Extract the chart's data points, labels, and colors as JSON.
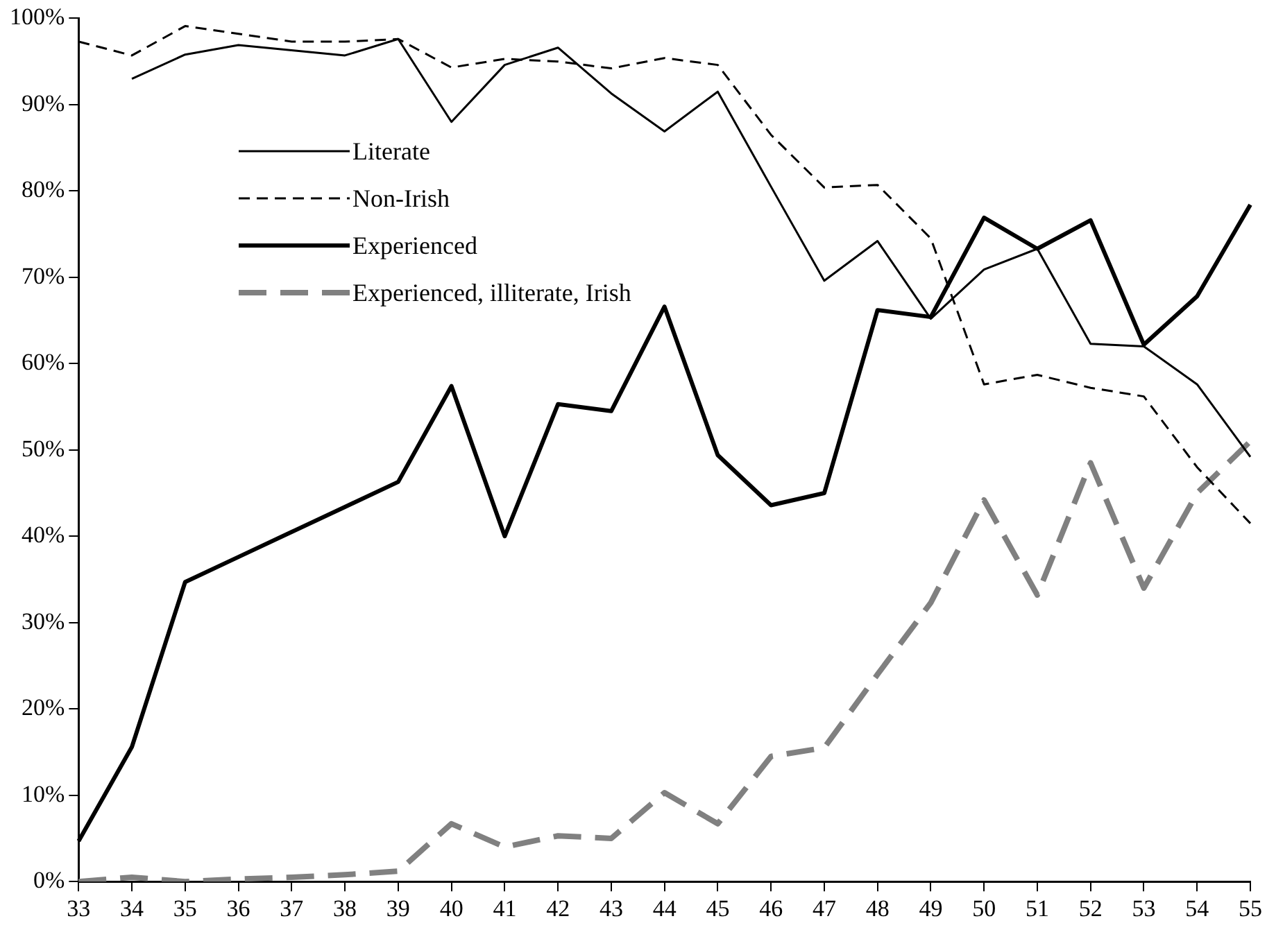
{
  "chart_data": {
    "type": "line",
    "categories": [
      "33",
      "34",
      "35",
      "36",
      "37",
      "38",
      "39",
      "40",
      "41",
      "42",
      "43",
      "44",
      "45",
      "46",
      "47",
      "48",
      "49",
      "50",
      "51",
      "52",
      "53",
      "54",
      "55"
    ],
    "series": [
      {
        "name": "Literate",
        "color": "#000000",
        "line_style": "solid",
        "values": [
          null,
          93,
          95.8,
          96.9,
          96.3,
          95.7,
          97.6,
          88,
          94.6,
          96.6,
          91.3,
          86.9,
          91.5,
          80.5,
          69.6,
          74.2,
          65.2,
          70.9,
          73.3,
          62.3,
          62,
          57.6,
          49.2
        ]
      },
      {
        "name": "Non-Irish",
        "color": "#000000",
        "line_style": "dashed",
        "values": [
          97.3,
          95.7,
          99.1,
          98.2,
          97.3,
          97.3,
          97.6,
          94.3,
          95.3,
          95,
          94.2,
          95.4,
          94.6,
          86.5,
          80.4,
          80.7,
          74.5,
          57.6,
          58.7,
          57.2,
          56.2,
          48,
          41.5
        ]
      },
      {
        "name": "Experienced",
        "color": "#000000",
        "line_style": "solid",
        "values": [
          4.7,
          15.6,
          34.7,
          37.6,
          40.5,
          43.4,
          46.3,
          57.4,
          40,
          55.3,
          54.5,
          66.6,
          49.4,
          43.6,
          45,
          66.2,
          65.4,
          76.9,
          73.3,
          76.6,
          62.2,
          67.8,
          78.4
        ]
      },
      {
        "name": "Experienced, illiterate, Irish",
        "color": "#808080",
        "line_style": "dashed",
        "values": [
          0,
          0.5,
          0,
          0.3,
          0.5,
          0.8,
          1.2,
          6.7,
          4,
          5.3,
          5,
          10.3,
          6.7,
          14.5,
          15.5,
          24,
          32.3,
          44.2,
          33.2,
          48.5,
          34,
          45,
          51
        ]
      }
    ],
    "ylim": [
      0,
      100
    ],
    "yticks": [
      {
        "value": 0,
        "label": "0%"
      },
      {
        "value": 10,
        "label": "10%"
      },
      {
        "value": 20,
        "label": "20%"
      },
      {
        "value": 30,
        "label": "30%"
      },
      {
        "value": 40,
        "label": "40%"
      },
      {
        "value": 50,
        "label": "50%"
      },
      {
        "value": 60,
        "label": "60%"
      },
      {
        "value": 70,
        "label": "70%"
      },
      {
        "value": 80,
        "label": "80%"
      },
      {
        "value": 90,
        "label": "90%"
      },
      {
        "value": 100,
        "label": "100%"
      }
    ],
    "grid": false,
    "legend": "top left",
    "marker": "none"
  }
}
